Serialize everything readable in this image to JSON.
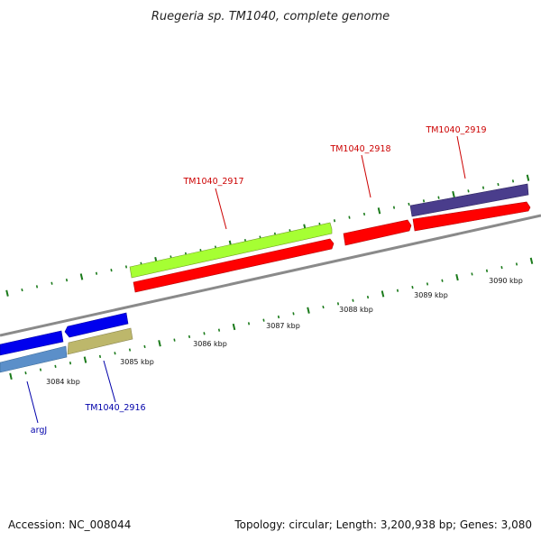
{
  "title": "Ruegeria sp. TM1040, complete genome",
  "footer": {
    "accession": "Accession: NC_008044",
    "topology": "Topology: circular; Length: 3,200,938 bp; Genes: 3,080"
  },
  "colors": {
    "backbone": "#8a8a8a",
    "tick": "#1a7a1a",
    "label_forward": "#cc0000",
    "label_reverse": "#0000aa"
  },
  "scale": {
    "ticks_kbp": [
      {
        "kbp": 3084,
        "label": "3084 kbp"
      },
      {
        "kbp": 3085,
        "label": "3085 kbp"
      },
      {
        "kbp": 3086,
        "label": "3086 kbp"
      },
      {
        "kbp": 3087,
        "label": "3087 kbp"
      },
      {
        "kbp": 3088,
        "label": "3088 kbp"
      },
      {
        "kbp": 3089,
        "label": "3089 kbp"
      },
      {
        "kbp": 3090,
        "label": "3090 kbp"
      }
    ]
  },
  "genes": [
    {
      "id": "argJ",
      "label": "argJ",
      "strand": "reverse",
      "labeled": true
    },
    {
      "id": "TM1040_2916",
      "label": "TM1040_2916",
      "strand": "reverse",
      "labeled": true
    },
    {
      "id": "TM1040_2917",
      "label": "TM1040_2917",
      "strand": "forward",
      "labeled": true
    },
    {
      "id": "TM1040_2918",
      "label": "TM1040_2918",
      "strand": "forward",
      "labeled": true
    },
    {
      "id": "TM1040_2919",
      "label": "TM1040_2919",
      "strand": "forward",
      "labeled": true
    }
  ]
}
